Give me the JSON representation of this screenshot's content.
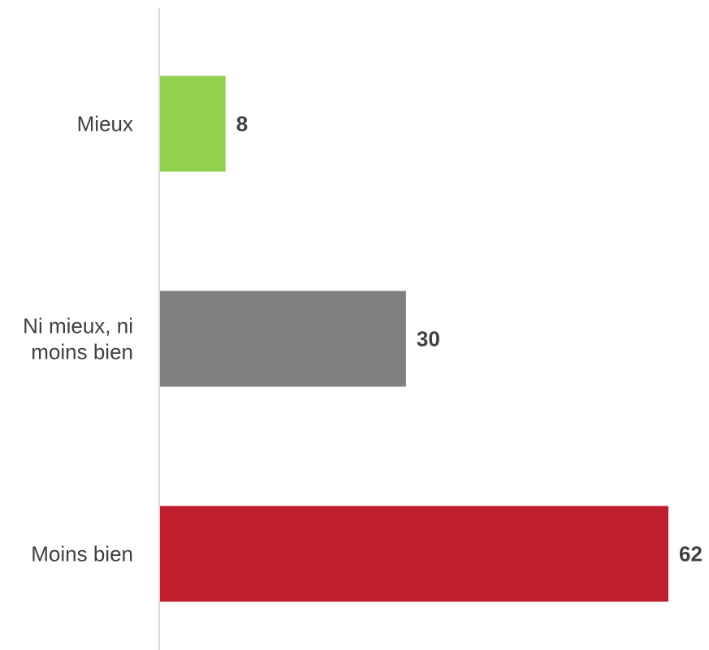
{
  "chart_data": {
    "type": "bar",
    "orientation": "horizontal",
    "categories": [
      "Mieux",
      "Ni mieux, ni moins bien",
      "Moins bien"
    ],
    "category_lines": [
      [
        "Mieux"
      ],
      [
        "Ni mieux, ni",
        "moins bien"
      ],
      [
        "Moins bien"
      ]
    ],
    "values": [
      8,
      30,
      62
    ],
    "value_labels": [
      "8",
      "30",
      "62"
    ],
    "colors": [
      "#92d050",
      "#808080",
      "#be1e2d"
    ],
    "xlim": [
      0,
      62
    ],
    "grid": false,
    "legend": "none",
    "data_labels": true
  }
}
